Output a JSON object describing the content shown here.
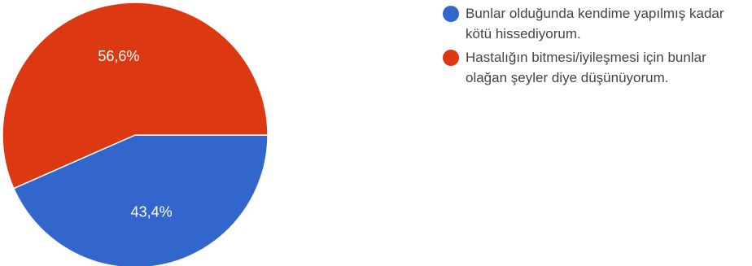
{
  "chart_data": {
    "type": "pie",
    "series": [
      {
        "name": "Bunlar olduğunda kendime yapılmış kadar kötü hissediyorum.",
        "value": 43.4,
        "label": "43,4%",
        "color": "#3366cc"
      },
      {
        "name": "Hastalığın bitmesi/iyileşmesi için bunlar olağan şeyler diye düşünüyorum.",
        "value": 56.6,
        "label": "56,6%",
        "color": "#dc3912"
      }
    ],
    "legend_position": "right"
  }
}
